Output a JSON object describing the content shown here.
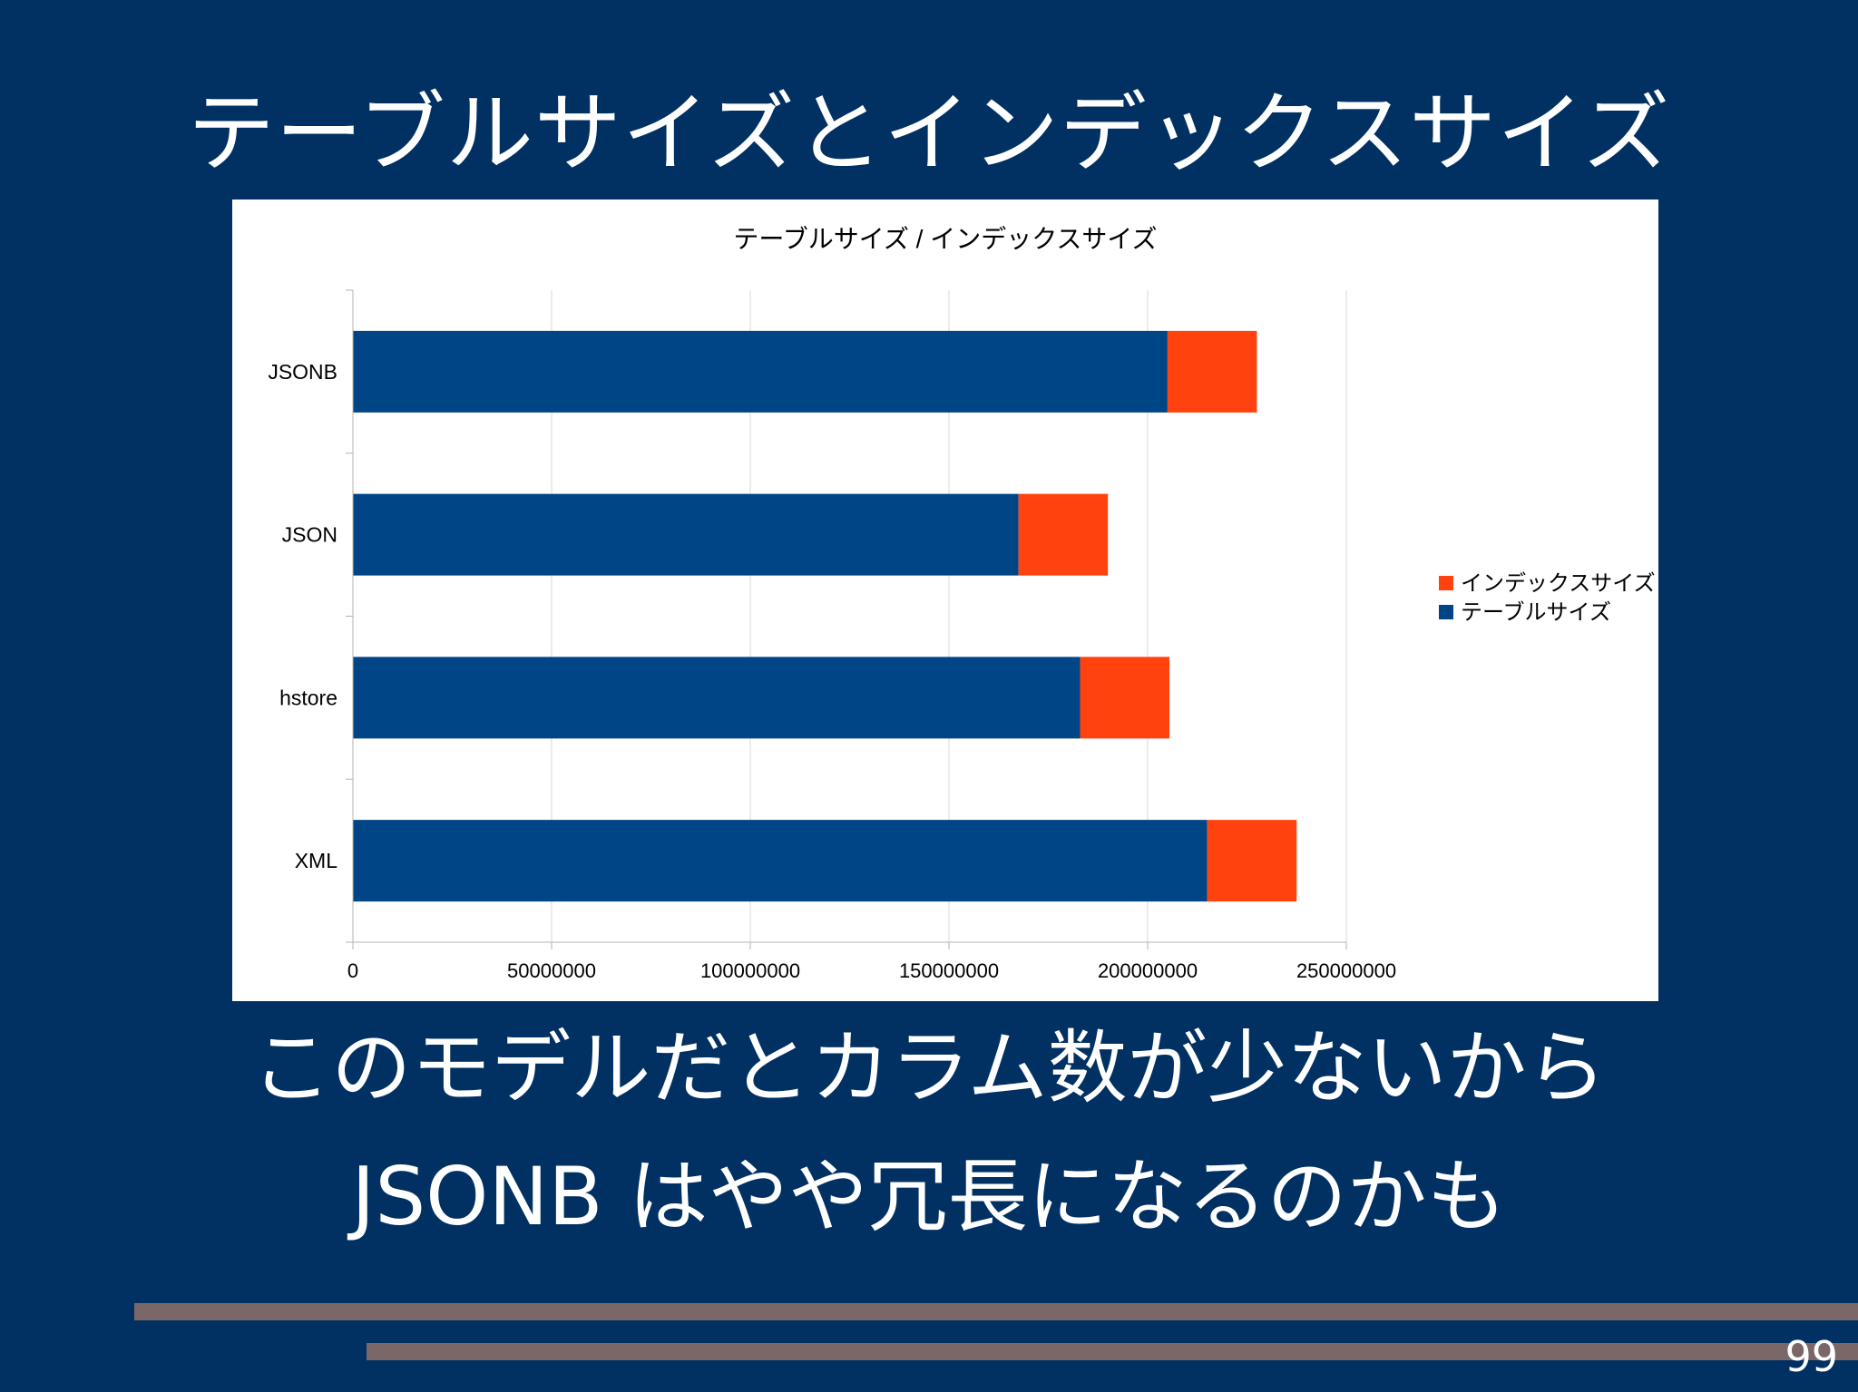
{
  "slide": {
    "title": "テーブルサイズとインデックスサイズ",
    "caption_line1": "このモデルだとカラム数が少ないから",
    "caption_line2": "JSONB はやや冗長になるのかも",
    "page_number": "99"
  },
  "colors": {
    "background": "#003162",
    "table_size": "#004586",
    "index_size": "#ff420e",
    "deco_bar": "#7b6767"
  },
  "chart_data": {
    "type": "bar",
    "orientation": "horizontal",
    "stacked": true,
    "title": "テーブルサイズ / インデックスサイズ",
    "categories": [
      "JSONB",
      "JSON",
      "hstore",
      "XML"
    ],
    "series": [
      {
        "name": "テーブルサイズ",
        "color": "#004586",
        "values": [
          205000000,
          167500000,
          183000000,
          215000000
        ]
      },
      {
        "name": "インデックスサイズ",
        "color": "#ff420e",
        "values": [
          22500000,
          22500000,
          22500000,
          22500000
        ]
      }
    ],
    "x_ticks": [
      "0",
      "50000000",
      "100000000",
      "150000000",
      "200000000",
      "250000000"
    ],
    "xlim": [
      0,
      250000000
    ],
    "grid": true,
    "legend": {
      "position": "right",
      "entries": [
        "インデックスサイズ",
        "テーブルサイズ"
      ]
    }
  }
}
